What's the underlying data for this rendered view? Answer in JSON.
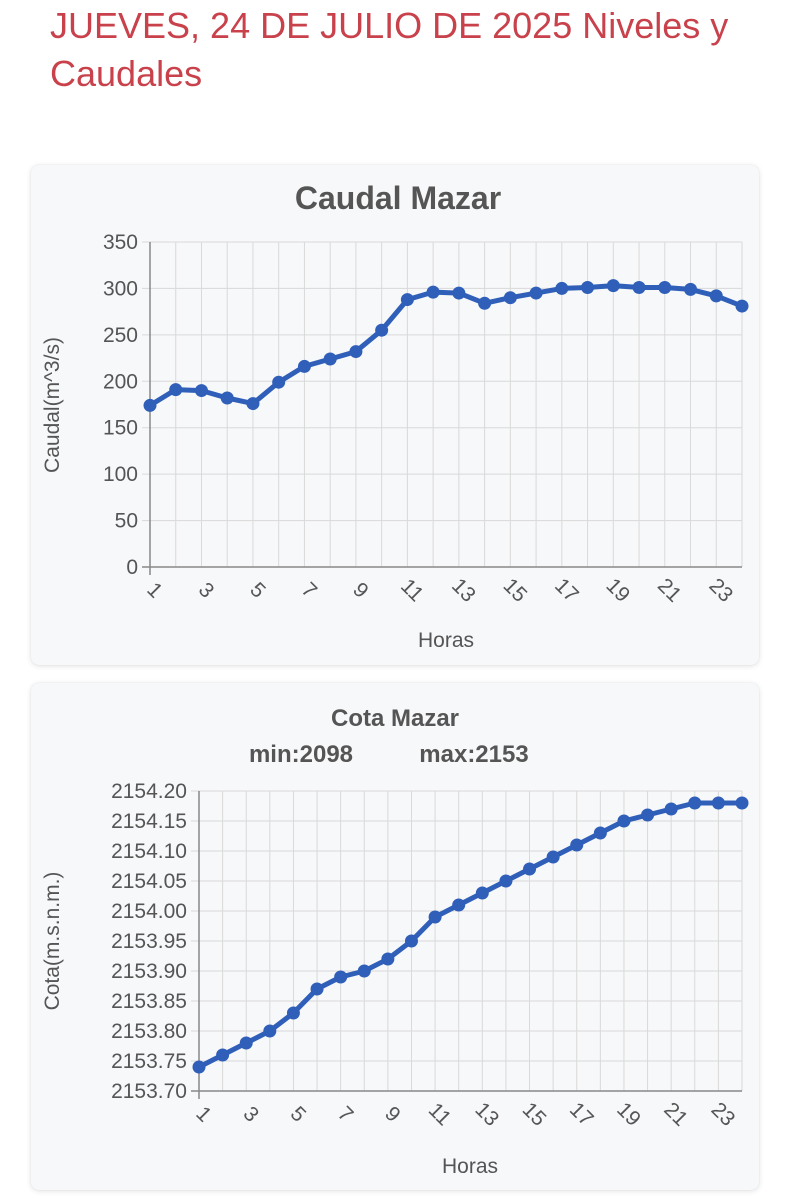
{
  "page": {
    "title": "JUEVES, 24 DE JULIO DE 2025 Niveles y Caudales"
  },
  "colors": {
    "title": "#c8414b",
    "line": "#2f5fb8",
    "grid": "#d9d9d9",
    "text": "#555555"
  },
  "chart_data": [
    {
      "type": "line",
      "title": "Caudal Mazar",
      "xlabel": "Horas",
      "ylabel": "Caudal(m^3/s)",
      "x": [
        1,
        2,
        3,
        4,
        5,
        6,
        7,
        8,
        9,
        10,
        11,
        12,
        13,
        14,
        15,
        16,
        17,
        18,
        19,
        20,
        21,
        22,
        23,
        24
      ],
      "x_tick_labels": [
        "1",
        "3",
        "5",
        "7",
        "9",
        "11",
        "13",
        "15",
        "17",
        "19",
        "21",
        "23"
      ],
      "y_tick_labels": [
        "0",
        "50",
        "100",
        "150",
        "200",
        "250",
        "300",
        "350"
      ],
      "ylim": [
        0,
        350
      ],
      "grid": true,
      "series": [
        {
          "name": "Caudal",
          "values": [
            174,
            191,
            190,
            182,
            176,
            199,
            216,
            224,
            232,
            255,
            288,
            296,
            295,
            284,
            290,
            295,
            300,
            301,
            303,
            301,
            301,
            299,
            292,
            281
          ]
        }
      ]
    },
    {
      "type": "line",
      "title": "Cota Mazar",
      "subtitle_min": "min:2098",
      "subtitle_max": "max:2153",
      "xlabel": "Horas",
      "ylabel": "Cota(m.s.n.m.)",
      "x": [
        1,
        2,
        3,
        4,
        5,
        6,
        7,
        8,
        9,
        10,
        11,
        12,
        13,
        14,
        15,
        16,
        17,
        18,
        19,
        20,
        21,
        22,
        23,
        24
      ],
      "x_tick_labels": [
        "1",
        "3",
        "5",
        "7",
        "9",
        "11",
        "13",
        "15",
        "17",
        "19",
        "21",
        "23"
      ],
      "y_tick_labels": [
        "2153.70",
        "2153.75",
        "2153.80",
        "2153.85",
        "2153.90",
        "2153.95",
        "2154.00",
        "2154.05",
        "2154.10",
        "2154.15",
        "2154.20"
      ],
      "ylim": [
        2153.7,
        2154.2
      ],
      "grid": true,
      "series": [
        {
          "name": "Cota",
          "values": [
            2153.74,
            2153.76,
            2153.78,
            2153.8,
            2153.83,
            2153.87,
            2153.89,
            2153.9,
            2153.92,
            2153.95,
            2153.99,
            2154.01,
            2154.03,
            2154.05,
            2154.07,
            2154.09,
            2154.11,
            2154.13,
            2154.15,
            2154.16,
            2154.17,
            2154.18,
            2154.18,
            2154.18
          ]
        }
      ]
    }
  ]
}
